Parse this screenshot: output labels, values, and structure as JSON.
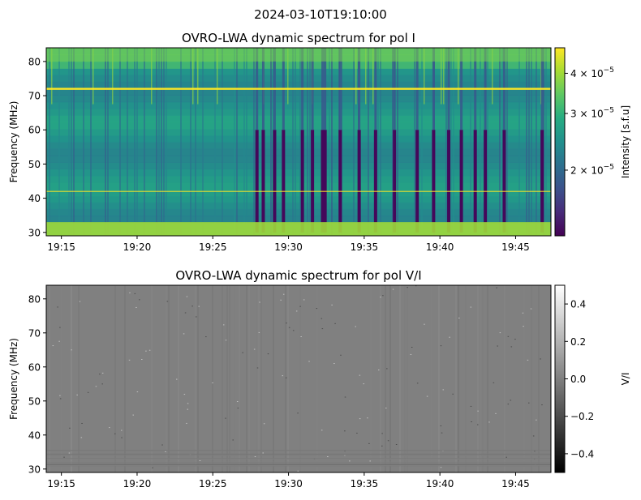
{
  "suptitle": "2024-03-10T19:10:00",
  "chart_data": [
    {
      "type": "heatmap",
      "title": "OVRO-LWA dynamic spectrum for pol I",
      "ylabel": "Frequency (MHz)",
      "xlabel": "",
      "x_range": [
        "19:14:00",
        "19:47:20"
      ],
      "y_range": [
        29,
        84
      ],
      "x_ticks": [
        "19:15",
        "19:20",
        "19:25",
        "19:30",
        "19:35",
        "19:40",
        "19:45"
      ],
      "y_ticks": [
        30,
        40,
        50,
        60,
        70,
        80
      ],
      "colormap": "viridis",
      "colorbar": {
        "label": "Intensity [s.f.u]",
        "scale": "log",
        "range": [
          1.25e-05,
          4.8e-05
        ],
        "ticks": [
          {
            "value": 4e-05,
            "base": "4 × 10",
            "exp": "−5"
          },
          {
            "value": 3e-05,
            "base": "3 × 10",
            "exp": "−5"
          },
          {
            "value": 2e-05,
            "base": "2 × 10",
            "exp": "−5"
          }
        ]
      },
      "features": {
        "bright_lines_mhz": [
          72,
          42
        ],
        "band_bottom_mhz": [
          29,
          33
        ],
        "dark_stripe_times": [
          "19:27:55",
          "19:28:20",
          "19:29:05",
          "19:29:40",
          "19:30:55",
          "19:31:35",
          "19:32:15",
          "19:32:25",
          "19:33:25",
          "19:34:40",
          "19:35:45",
          "19:37:00",
          "19:38:30",
          "19:39:35",
          "19:40:35",
          "19:41:25",
          "19:42:20",
          "19:43:00",
          "19:44:15",
          "19:46:45"
        ]
      }
    },
    {
      "type": "heatmap",
      "title": "OVRO-LWA dynamic spectrum for pol V/I",
      "ylabel": "Frequency (MHz)",
      "xlabel": "",
      "x_range": [
        "19:14:00",
        "19:47:20"
      ],
      "y_range": [
        29,
        84
      ],
      "x_ticks": [
        "19:15",
        "19:20",
        "19:25",
        "19:30",
        "19:35",
        "19:40",
        "19:45"
      ],
      "y_ticks": [
        30,
        40,
        50,
        60,
        70,
        80
      ],
      "colormap": "gray",
      "colorbar": {
        "label": "V/I",
        "scale": "linear",
        "range": [
          -0.5,
          0.5
        ],
        "ticks": [
          {
            "value": 0.4,
            "label": "0.4"
          },
          {
            "value": 0.2,
            "label": "0.2"
          },
          {
            "value": 0.0,
            "label": "0.0"
          },
          {
            "value": -0.2,
            "label": "−0.2"
          },
          {
            "value": -0.4,
            "label": "−0.4"
          }
        ]
      },
      "features": {
        "typical_value": 0.0
      }
    }
  ]
}
